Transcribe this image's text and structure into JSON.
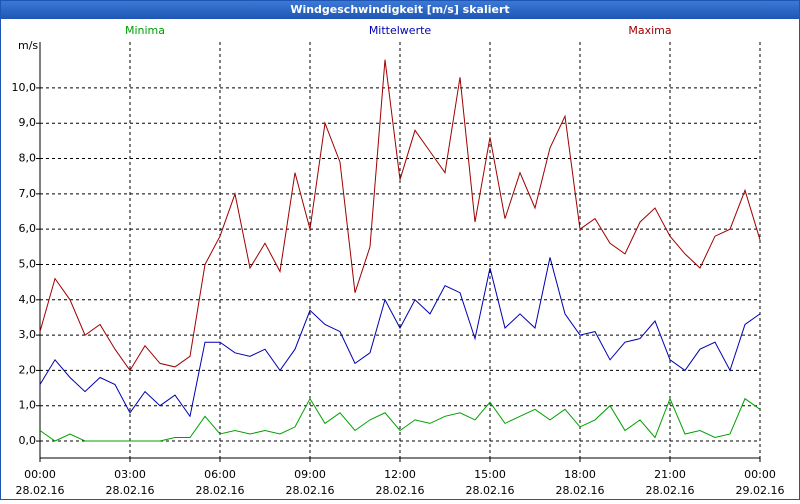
{
  "chart_data": {
    "type": "line",
    "title": "Windgeschwindigkeit [m/s] skaliert",
    "y_label": "m/s",
    "x": [
      0,
      0.5,
      1,
      1.5,
      2,
      2.5,
      3,
      3.5,
      4,
      4.5,
      5,
      5.5,
      6,
      6.5,
      7,
      7.5,
      8,
      8.5,
      9,
      9.5,
      10,
      10.5,
      11,
      11.5,
      12,
      12.5,
      13,
      13.5,
      14,
      14.5,
      15,
      15.5,
      16,
      16.5,
      17,
      17.5,
      18,
      18.5,
      19,
      19.5,
      20,
      20.5,
      21,
      21.5,
      22,
      22.5,
      23,
      23.5,
      24
    ],
    "series": [
      {
        "name": "Minima",
        "color": "#00a000",
        "values": [
          0.3,
          0.0,
          0.2,
          0.0,
          0.0,
          0.0,
          0.0,
          0.0,
          0.0,
          0.1,
          0.1,
          0.7,
          0.2,
          0.3,
          0.2,
          0.3,
          0.2,
          0.4,
          1.2,
          0.5,
          0.8,
          0.3,
          0.6,
          0.8,
          0.3,
          0.6,
          0.5,
          0.7,
          0.8,
          0.6,
          1.1,
          0.5,
          0.7,
          0.9,
          0.6,
          0.9,
          0.4,
          0.6,
          1.0,
          0.3,
          0.6,
          0.1,
          1.2,
          0.2,
          0.3,
          0.1,
          0.2,
          1.2,
          0.9
        ]
      },
      {
        "name": "Mittelwerte",
        "color": "#0000b0",
        "values": [
          1.6,
          2.3,
          1.8,
          1.4,
          1.8,
          1.6,
          0.8,
          1.4,
          1.0,
          1.3,
          0.7,
          2.8,
          2.8,
          2.5,
          2.4,
          2.6,
          2.0,
          2.6,
          3.7,
          3.3,
          3.1,
          2.2,
          2.5,
          4.0,
          3.2,
          4.0,
          3.6,
          4.4,
          4.2,
          2.9,
          4.9,
          3.2,
          3.6,
          3.2,
          5.2,
          3.6,
          3.0,
          3.1,
          2.3,
          2.8,
          2.9,
          3.4,
          2.3,
          2.0,
          2.6,
          2.8,
          2.0,
          3.3,
          3.6
        ]
      },
      {
        "name": "Maxima",
        "color": "#a00000",
        "values": [
          3.1,
          4.6,
          4.0,
          3.0,
          3.3,
          2.6,
          2.0,
          2.7,
          2.2,
          2.1,
          2.4,
          5.0,
          5.8,
          7.0,
          4.9,
          5.6,
          4.8,
          7.6,
          6.0,
          9.0,
          7.9,
          4.2,
          5.5,
          10.8,
          7.4,
          8.8,
          8.2,
          7.6,
          10.3,
          6.2,
          8.6,
          6.3,
          7.6,
          6.6,
          8.3,
          9.2,
          6.0,
          6.3,
          5.6,
          5.3,
          6.2,
          6.6,
          5.8,
          5.3,
          4.9,
          5.8,
          6.0,
          7.1,
          5.7
        ]
      }
    ],
    "xlim": [
      0,
      24
    ],
    "xticks": [
      {
        "value": 0,
        "label": "00:00",
        "date": "28.02.16"
      },
      {
        "value": 3,
        "label": "03:00",
        "date": "28.02.16"
      },
      {
        "value": 6,
        "label": "06:00",
        "date": "28.02.16"
      },
      {
        "value": 9,
        "label": "09:00",
        "date": "28.02.16"
      },
      {
        "value": 12,
        "label": "12:00",
        "date": "28.02.16"
      },
      {
        "value": 15,
        "label": "15:00",
        "date": "28.02.16"
      },
      {
        "value": 18,
        "label": "18:00",
        "date": "28.02.16"
      },
      {
        "value": 21,
        "label": "21:00",
        "date": "28.02.16"
      },
      {
        "value": 24,
        "label": "00:00",
        "date": "29.02.16"
      }
    ],
    "ylim": [
      -0.48,
      11.3
    ],
    "yticks": [
      {
        "value": 0,
        "label": "0,0"
      },
      {
        "value": 1,
        "label": "1,0"
      },
      {
        "value": 2,
        "label": "2,0"
      },
      {
        "value": 3,
        "label": "3,0"
      },
      {
        "value": 4,
        "label": "4,0"
      },
      {
        "value": 5,
        "label": "5,0"
      },
      {
        "value": 6,
        "label": "6,0"
      },
      {
        "value": 7,
        "label": "7,0"
      },
      {
        "value": 8,
        "label": "8,0"
      },
      {
        "value": 9,
        "label": "9,0"
      },
      {
        "value": 10,
        "label": "10,0"
      }
    ],
    "grid": true
  }
}
